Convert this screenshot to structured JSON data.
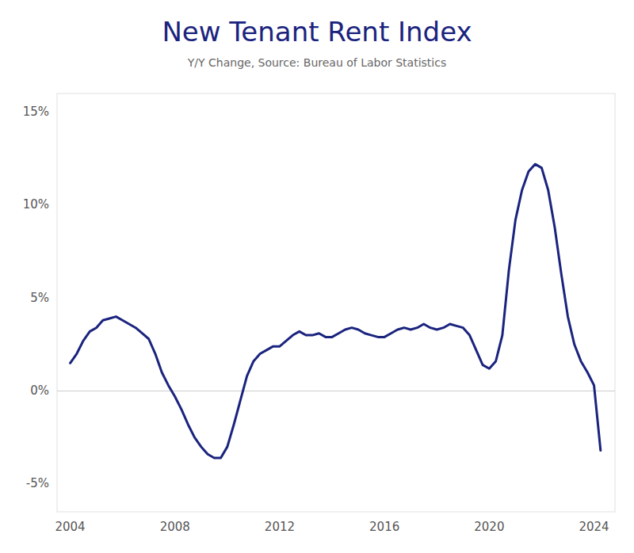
{
  "chart_data": {
    "type": "line",
    "title": "New Tenant Rent Index",
    "subtitle": "Y/Y Change, Source: Bureau of Labor Statistics",
    "color": "#1a237e",
    "grid": false,
    "xlim": [
      2003.5,
      2024.8
    ],
    "xticks": [
      2004,
      2008,
      2012,
      2016,
      2020,
      2024
    ],
    "ylim": [
      -0.065,
      0.16
    ],
    "yticks": [
      {
        "value": -0.05,
        "label": "-5%"
      },
      {
        "value": 0.0,
        "label": "0%"
      },
      {
        "value": 0.05,
        "label": "5%"
      },
      {
        "value": 0.1,
        "label": "10%"
      },
      {
        "value": 0.15,
        "label": "15%"
      }
    ],
    "x": [
      2004.0,
      2004.25,
      2004.5,
      2004.75,
      2005.0,
      2005.25,
      2005.5,
      2005.75,
      2006.0,
      2006.25,
      2006.5,
      2006.75,
      2007.0,
      2007.25,
      2007.5,
      2007.75,
      2008.0,
      2008.25,
      2008.5,
      2008.75,
      2009.0,
      2009.25,
      2009.5,
      2009.75,
      2010.0,
      2010.25,
      2010.5,
      2010.75,
      2011.0,
      2011.25,
      2011.5,
      2011.75,
      2012.0,
      2012.25,
      2012.5,
      2012.75,
      2013.0,
      2013.25,
      2013.5,
      2013.75,
      2014.0,
      2014.25,
      2014.5,
      2014.75,
      2015.0,
      2015.25,
      2015.5,
      2015.75,
      2016.0,
      2016.25,
      2016.5,
      2016.75,
      2017.0,
      2017.25,
      2017.5,
      2017.75,
      2018.0,
      2018.25,
      2018.5,
      2018.75,
      2019.0,
      2019.25,
      2019.5,
      2019.75,
      2020.0,
      2020.25,
      2020.5,
      2020.75,
      2021.0,
      2021.25,
      2021.5,
      2021.75,
      2022.0,
      2022.25,
      2022.5,
      2022.75,
      2023.0,
      2023.25,
      2023.5,
      2023.75,
      2024.0,
      2024.25
    ],
    "values": [
      0.015,
      0.02,
      0.027,
      0.032,
      0.034,
      0.038,
      0.039,
      0.04,
      0.038,
      0.036,
      0.034,
      0.031,
      0.028,
      0.02,
      0.01,
      0.003,
      -0.003,
      -0.01,
      -0.018,
      -0.025,
      -0.03,
      -0.034,
      -0.036,
      -0.036,
      -0.03,
      -0.018,
      -0.005,
      0.008,
      0.016,
      0.02,
      0.022,
      0.024,
      0.024,
      0.027,
      0.03,
      0.032,
      0.03,
      0.03,
      0.031,
      0.029,
      0.029,
      0.031,
      0.033,
      0.034,
      0.033,
      0.031,
      0.03,
      0.029,
      0.029,
      0.031,
      0.033,
      0.034,
      0.033,
      0.034,
      0.036,
      0.034,
      0.033,
      0.034,
      0.036,
      0.035,
      0.034,
      0.03,
      0.022,
      0.014,
      0.012,
      0.016,
      0.03,
      0.065,
      0.092,
      0.108,
      0.118,
      0.122,
      0.12,
      0.108,
      0.088,
      0.063,
      0.04,
      0.025,
      0.016,
      0.01,
      0.003,
      -0.032
    ]
  }
}
